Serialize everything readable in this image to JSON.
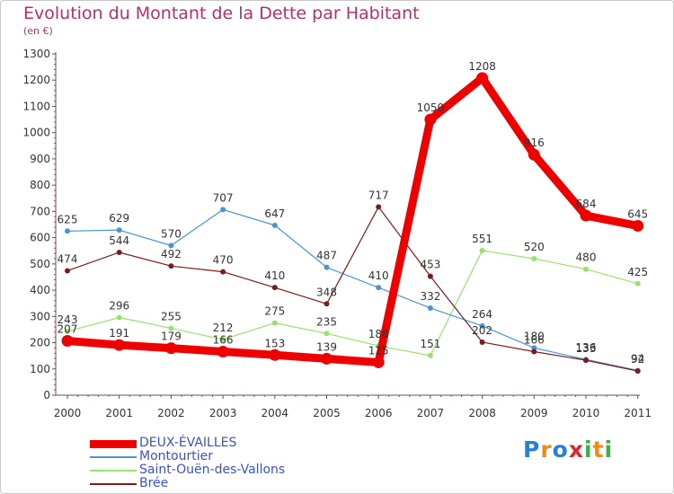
{
  "title": "Evolution du Montant de la Dette par Habitant",
  "subtitle": "(en €)",
  "logo": {
    "letters": [
      "P",
      "r",
      "o",
      "x",
      "i",
      "t",
      "i"
    ],
    "colors": [
      "#2a7fd4",
      "#f08a1c",
      "#2a7fd4",
      "#e0262a",
      "#3fae49",
      "#f08a1c",
      "#3fae49"
    ]
  },
  "chart_data": {
    "type": "line",
    "categories": [
      "2000",
      "2001",
      "2002",
      "2003",
      "2004",
      "2005",
      "2006",
      "2007",
      "2008",
      "2009",
      "2010",
      "2011"
    ],
    "ylim": [
      0,
      1300
    ],
    "yticks": [
      0,
      100,
      200,
      300,
      400,
      500,
      600,
      700,
      800,
      900,
      1000,
      1100,
      1200,
      1300
    ],
    "grid": false,
    "legend_position": "bottom-left",
    "series": [
      {
        "name": "DEUX-ÉVAILLES",
        "color": "#ee0000",
        "values": [
          207,
          191,
          179,
          166,
          153,
          139,
          125,
          1050,
          1208,
          916,
          684,
          645
        ]
      },
      {
        "name": "Montourtier",
        "color": "#4b94d2",
        "values": [
          625,
          629,
          570,
          707,
          647,
          487,
          410,
          332,
          264,
          180,
          136,
          94
        ]
      },
      {
        "name": "Saint-Ouën-des-Vallons",
        "color": "#99e06f",
        "values": [
          243,
          296,
          255,
          212,
          275,
          235,
          188,
          151,
          551,
          520,
          480,
          425
        ]
      },
      {
        "name": "Brée",
        "color": "#7a1c1c",
        "values": [
          474,
          544,
          492,
          470,
          410,
          348,
          717,
          453,
          202,
          166,
          133,
          92
        ]
      }
    ]
  }
}
